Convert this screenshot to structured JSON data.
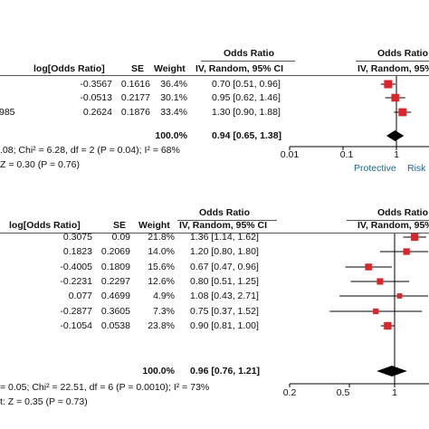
{
  "chart_data": [
    {
      "type": "forest",
      "headers": {
        "log_or": "log[Odds Ratio]",
        "se": "SE",
        "weight": "Weight",
        "or_group": "Odds Ratio",
        "or_method": "IV, Random, 95% CI",
        "plot_group": "Odds Ratio",
        "plot_method": "IV, Random, 95%"
      },
      "rows": [
        {
          "study": "",
          "log_or": "-0.3567",
          "se": "0.1616",
          "weight": "36.4%",
          "ci_text": "0.70 [0.51, 0.96]",
          "or": 0.7,
          "lo": 0.51,
          "hi": 0.96
        },
        {
          "study": "",
          "log_or": "-0.0513",
          "se": "0.2177",
          "weight": "30.1%",
          "ci_text": "0.95 [0.62, 1.46]",
          "or": 0.95,
          "lo": 0.62,
          "hi": 1.46
        },
        {
          "study": "985",
          "log_or": "0.2624",
          "se": "0.1876",
          "weight": "33.4%",
          "ci_text": "1.30 [0.90, 1.88]",
          "or": 1.3,
          "lo": 0.9,
          "hi": 1.88
        }
      ],
      "total": {
        "weight": "100.0%",
        "ci_text": "0.94 [0.65, 1.38]",
        "or": 0.94,
        "lo": 0.65,
        "hi": 1.38
      },
      "heterogeneity": ".08; Chi² = 6.28, df = 2 (P = 0.04); I² = 68%",
      "overall_effect": "Z = 0.30 (P = 0.76)",
      "x_scale": "log",
      "xlim": [
        0.01,
        2.5
      ],
      "ticks": [
        "0.01",
        "0.1",
        "1"
      ],
      "tick_values": [
        0.01,
        0.1,
        1
      ],
      "axis_labels": {
        "left": "Protective",
        "right": "Risk"
      }
    },
    {
      "type": "forest",
      "headers": {
        "log_or": "log[Odds Ratio]",
        "se": "SE",
        "weight": "Weight",
        "or_group": "Odds Ratio",
        "or_method": "IV, Random, 95% CI",
        "plot_group": "Odds Ratio",
        "plot_method": "IV, Random, 95%"
      },
      "rows": [
        {
          "log_or": "0.3075",
          "se": "0.09",
          "weight": "21.8%",
          "ci_text": "1.36 [1.14, 1.62]",
          "or": 1.36,
          "lo": 1.14,
          "hi": 1.62
        },
        {
          "log_or": "0.1823",
          "se": "0.2069",
          "weight": "14.0%",
          "ci_text": "1.20 [0.80, 1.80]",
          "or": 1.2,
          "lo": 0.8,
          "hi": 1.8
        },
        {
          "log_or": "-0.4005",
          "se": "0.1809",
          "weight": "15.6%",
          "ci_text": "0.67 [0.47, 0.96]",
          "or": 0.67,
          "lo": 0.47,
          "hi": 0.96
        },
        {
          "log_or": "-0.2231",
          "se": "0.2297",
          "weight": "12.6%",
          "ci_text": "0.80 [0.51, 1.25]",
          "or": 0.8,
          "lo": 0.51,
          "hi": 1.25
        },
        {
          "log_or": "0.077",
          "se": "0.4699",
          "weight": "4.9%",
          "ci_text": "1.08 [0.43, 2.71]",
          "or": 1.08,
          "lo": 0.43,
          "hi": 2.71
        },
        {
          "log_or": "-0.2877",
          "se": "0.3605",
          "weight": "7.3%",
          "ci_text": "0.75 [0.37, 1.52]",
          "or": 0.75,
          "lo": 0.37,
          "hi": 1.52
        },
        {
          "log_or": "-0.1054",
          "se": "0.0538",
          "weight": "23.8%",
          "ci_text": "0.90 [0.81, 1.00]",
          "or": 0.9,
          "lo": 0.81,
          "hi": 1.0
        }
      ],
      "total": {
        "weight": "100.0%",
        "ci_text": "0.96 [0.76, 1.21]",
        "or": 0.96,
        "lo": 0.76,
        "hi": 1.21
      },
      "heterogeneity": "= 0.05; Chi² = 22.51, df = 6 (P = 0.0010); I² = 73%",
      "overall_effect": "t: Z = 0.35 (P = 0.73)",
      "x_scale": "log",
      "xlim": [
        0.2,
        1.3
      ],
      "ticks": [
        "0.2",
        "0.5",
        "1"
      ],
      "tick_values": [
        0.2,
        0.5,
        1
      ],
      "colors": {
        "marker": "#d9262a",
        "line": "#000000"
      }
    }
  ]
}
